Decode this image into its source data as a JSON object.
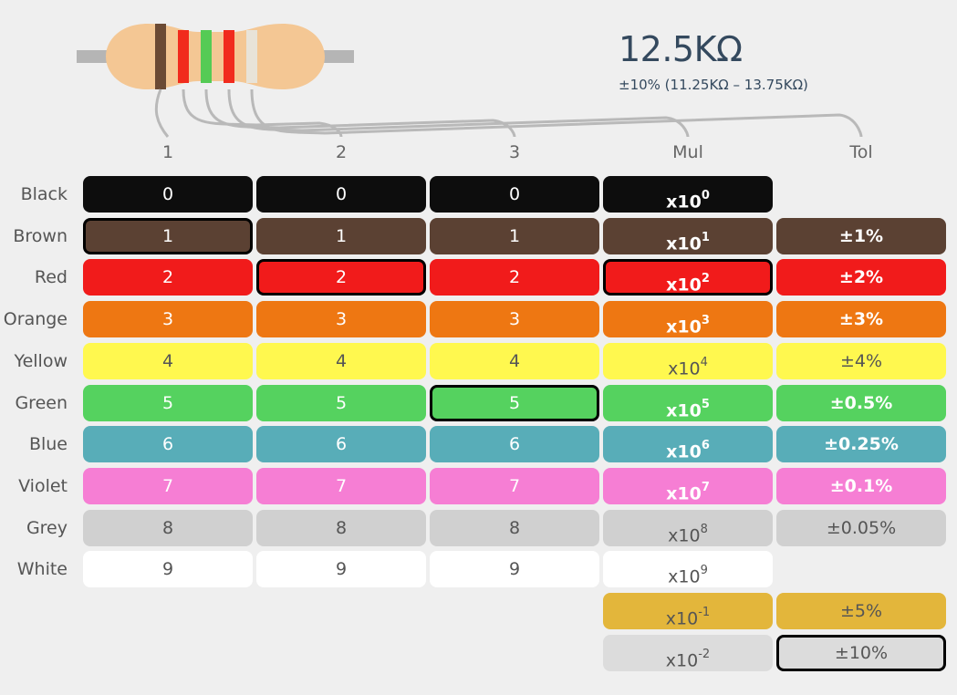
{
  "resistance": {
    "value": "12.5KΩ",
    "range": "±10% (11.25KΩ – 13.75KΩ)"
  },
  "resistor": {
    "body_color": "#f4c794",
    "lead_color": "#b5b5b5",
    "wire_color": "#b9b9b9",
    "bands": [
      "#6b4a34",
      "#f12b1d",
      "#55cb55",
      "#f12b1d",
      "#e8e3d8"
    ]
  },
  "columns": [
    "1",
    "2",
    "3",
    "Mul",
    "Tol"
  ],
  "rows": [
    {
      "name": "Black",
      "color": "#0d0d0d",
      "text": "#ffffff",
      "digit": "0",
      "mul_base": "x10",
      "mul_exp": "0",
      "tol": ""
    },
    {
      "name": "Brown",
      "color": "#5b4133",
      "text": "#ffffff",
      "digit": "1",
      "mul_base": "x10",
      "mul_exp": "1",
      "tol": "±1%"
    },
    {
      "name": "Red",
      "color": "#f11b1b",
      "text": "#ffffff",
      "digit": "2",
      "mul_base": "x10",
      "mul_exp": "2",
      "tol": "±2%"
    },
    {
      "name": "Orange",
      "color": "#ee7712",
      "text": "#ffffff",
      "digit": "3",
      "mul_base": "x10",
      "mul_exp": "3",
      "tol": "±3%"
    },
    {
      "name": "Yellow",
      "color": "#fff84f",
      "text": "#555555",
      "digit": "4",
      "mul_base": "x10",
      "mul_exp": "4",
      "tol": "±4%"
    },
    {
      "name": "Green",
      "color": "#55d25f",
      "text": "#ffffff",
      "digit": "5",
      "mul_base": "x10",
      "mul_exp": "5",
      "tol": "±0.5%"
    },
    {
      "name": "Blue",
      "color": "#58adb8",
      "text": "#ffffff",
      "digit": "6",
      "mul_base": "x10",
      "mul_exp": "6",
      "tol": "±0.25%"
    },
    {
      "name": "Violet",
      "color": "#f67ed4",
      "text": "#ffffff",
      "digit": "7",
      "mul_base": "x10",
      "mul_exp": "7",
      "tol": "±0.1%"
    },
    {
      "name": "Grey",
      "color": "#d0d0d0",
      "text": "#555555",
      "digit": "8",
      "mul_base": "x10",
      "mul_exp": "8",
      "tol": "±0.05%"
    },
    {
      "name": "White",
      "color": "#ffffff",
      "text": "#555555",
      "digit": "9",
      "mul_base": "x10",
      "mul_exp": "9",
      "tol": ""
    },
    {
      "name": "",
      "color": "#e3b63b",
      "text": "#555555",
      "digit": "",
      "mul_base": "x10",
      "mul_exp": "-1",
      "tol": "±5%"
    },
    {
      "name": "",
      "color": "#dcdcdc",
      "text": "#555555",
      "digit": "",
      "mul_base": "x10",
      "mul_exp": "-2",
      "tol": "±10%"
    }
  ],
  "selected": {
    "band1": "Brown",
    "band2": "Red",
    "band3": "Green",
    "multiplier": "Red",
    "tolerance": 11
  }
}
